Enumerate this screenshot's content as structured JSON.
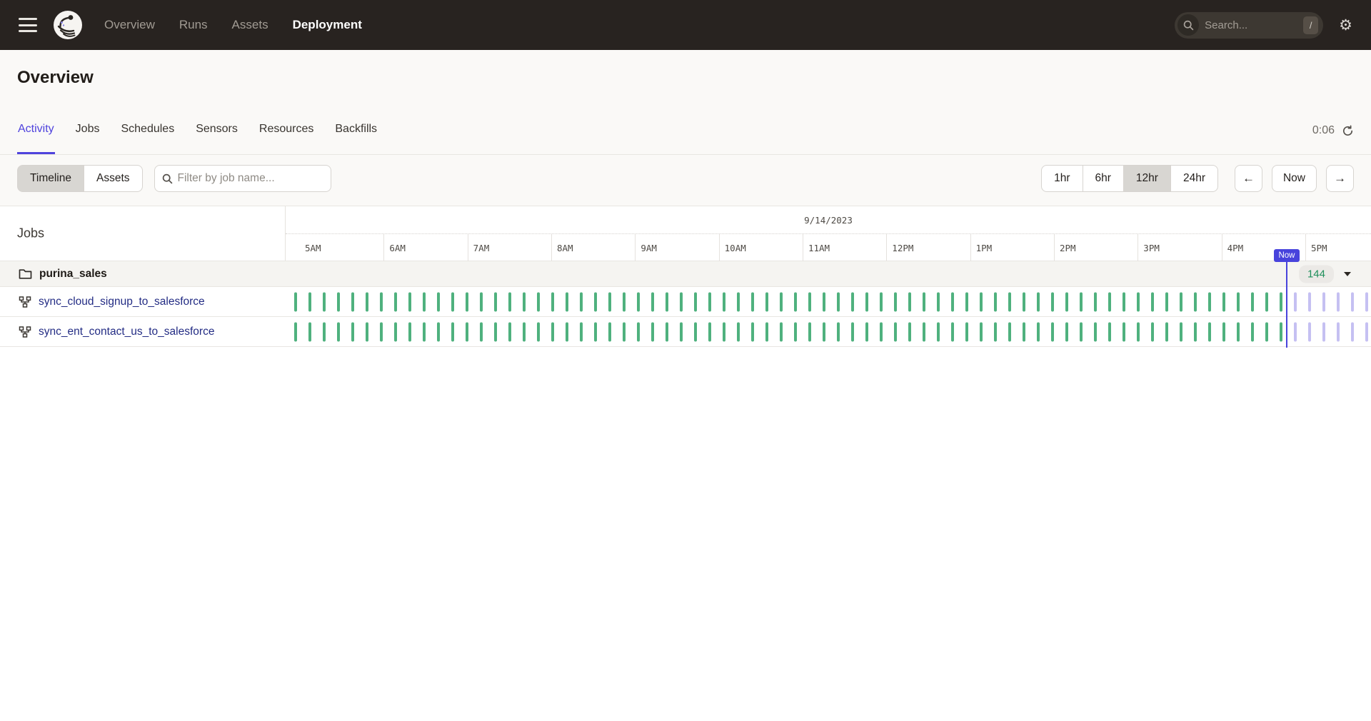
{
  "nav": {
    "links": [
      {
        "label": "Overview",
        "active": false
      },
      {
        "label": "Runs",
        "active": false
      },
      {
        "label": "Assets",
        "active": false
      },
      {
        "label": "Deployment",
        "active": true
      }
    ],
    "search_placeholder": "Search...",
    "shortcut_key": "/"
  },
  "page": {
    "title": "Overview"
  },
  "tabs": {
    "items": [
      "Activity",
      "Jobs",
      "Schedules",
      "Sensors",
      "Resources",
      "Backfills"
    ],
    "active": "Activity",
    "refresh_countdown": "0:06"
  },
  "toolbar": {
    "view_toggle": [
      {
        "label": "Timeline",
        "selected": true
      },
      {
        "label": "Assets",
        "selected": false
      }
    ],
    "filter_placeholder": "Filter by job name...",
    "ranges": [
      {
        "label": "1hr",
        "selected": false
      },
      {
        "label": "6hr",
        "selected": false
      },
      {
        "label": "12hr",
        "selected": true
      },
      {
        "label": "24hr",
        "selected": false
      }
    ],
    "prev_label": "←",
    "now_label": "Now",
    "next_label": "→"
  },
  "timeline": {
    "jobs_heading": "Jobs",
    "date": "9/14/2023",
    "hours": [
      "5AM",
      "6AM",
      "7AM",
      "8AM",
      "9AM",
      "10AM",
      "11AM",
      "12PM",
      "1PM",
      "2PM",
      "3PM",
      "4PM",
      "5PM"
    ],
    "now_label": "Now",
    "group": {
      "name": "purina_sales",
      "count": "144"
    },
    "jobs": [
      {
        "name": "sync_cloud_signup_to_salesforce"
      },
      {
        "name": "sync_ent_contact_us_to_salesforce"
      }
    ],
    "ticks": {
      "start": 13,
      "spacing": 20,
      "success_count": 70,
      "scheduled_count": 6
    },
    "hour_grid": {
      "start": 20,
      "spacing": 117.33,
      "count": 13
    },
    "colors": {
      "run_success": "#4FB17E",
      "run_scheduled": "#C5C0F2",
      "now": "#4843DC",
      "accent": "#4F43DD",
      "count_green": "#1E8F5B"
    }
  }
}
